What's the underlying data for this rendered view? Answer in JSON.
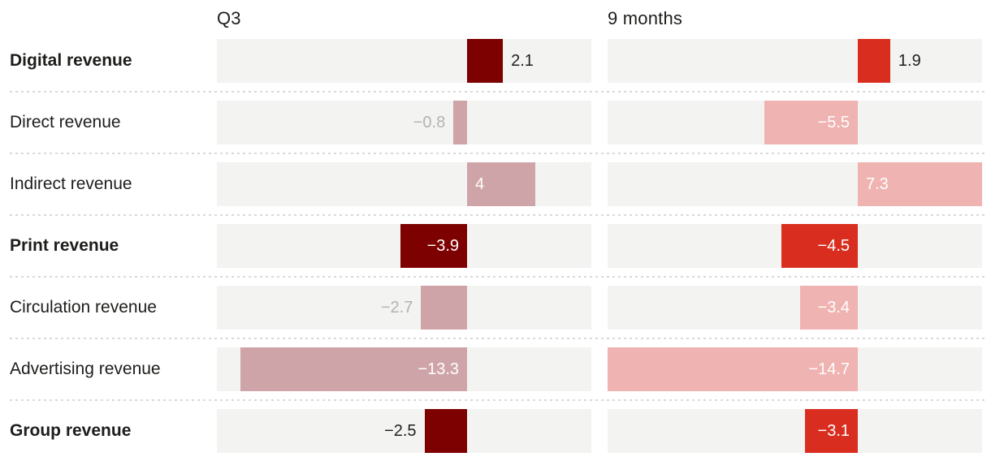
{
  "chart_data": {
    "type": "bar",
    "orientation": "horizontal",
    "title": "",
    "legend": "none",
    "grid": "off",
    "columns": [
      {
        "label": "Q3"
      },
      {
        "label": "9 months"
      }
    ],
    "categories": [
      "Digital revenue",
      "Direct revenue",
      "Indirect revenue",
      "Print revenue",
      "Circulation revenue",
      "Advertising revenue",
      "Group revenue"
    ],
    "series": [
      {
        "name": "Q3",
        "values": [
          2.1,
          -0.8,
          4,
          -3.9,
          -2.7,
          -13.3,
          -2.5
        ]
      },
      {
        "name": "9 months",
        "values": [
          1.9,
          -5.5,
          7.3,
          -4.5,
          -3.4,
          -14.7,
          -3.1
        ]
      }
    ],
    "xlim": [
      -14.7,
      7.3
    ],
    "rows": [
      {
        "label": "Digital revenue",
        "bold": true,
        "values": [
          {
            "value": 2.1,
            "display": "2.1"
          },
          {
            "value": 1.9,
            "display": "1.9"
          }
        ]
      },
      {
        "label": "Direct revenue",
        "bold": false,
        "values": [
          {
            "value": -0.8,
            "display": "−0.8"
          },
          {
            "value": -5.5,
            "display": "−5.5"
          }
        ]
      },
      {
        "label": "Indirect revenue",
        "bold": false,
        "values": [
          {
            "value": 4,
            "display": "4"
          },
          {
            "value": 7.3,
            "display": "7.3"
          }
        ]
      },
      {
        "label": "Print revenue",
        "bold": true,
        "values": [
          {
            "value": -3.9,
            "display": "−3.9"
          },
          {
            "value": -4.5,
            "display": "−4.5"
          }
        ]
      },
      {
        "label": "Circulation revenue",
        "bold": false,
        "values": [
          {
            "value": -2.7,
            "display": "−2.7"
          },
          {
            "value": -3.4,
            "display": "−3.4"
          }
        ]
      },
      {
        "label": "Advertising revenue",
        "bold": false,
        "values": [
          {
            "value": -13.3,
            "display": "−13.3"
          },
          {
            "value": -14.7,
            "display": "−14.7"
          }
        ]
      },
      {
        "label": "Group revenue",
        "bold": true,
        "values": [
          {
            "value": -2.5,
            "display": "−2.5"
          },
          {
            "value": -3.1,
            "display": "−3.1"
          }
        ]
      }
    ],
    "colors": {
      "dark_red": "#7d0100",
      "bright_red": "#d92e1f",
      "rose": "#cfa4a9",
      "light_pink": "#efb3b1",
      "track": "#f3f3f1",
      "separator": "#d9d9d9",
      "outside_label_gray": "#b3b3b3",
      "outside_label_dark": "#1f1f1d",
      "inside_label": "#ffffff",
      "text": "#1d1d1b"
    }
  }
}
